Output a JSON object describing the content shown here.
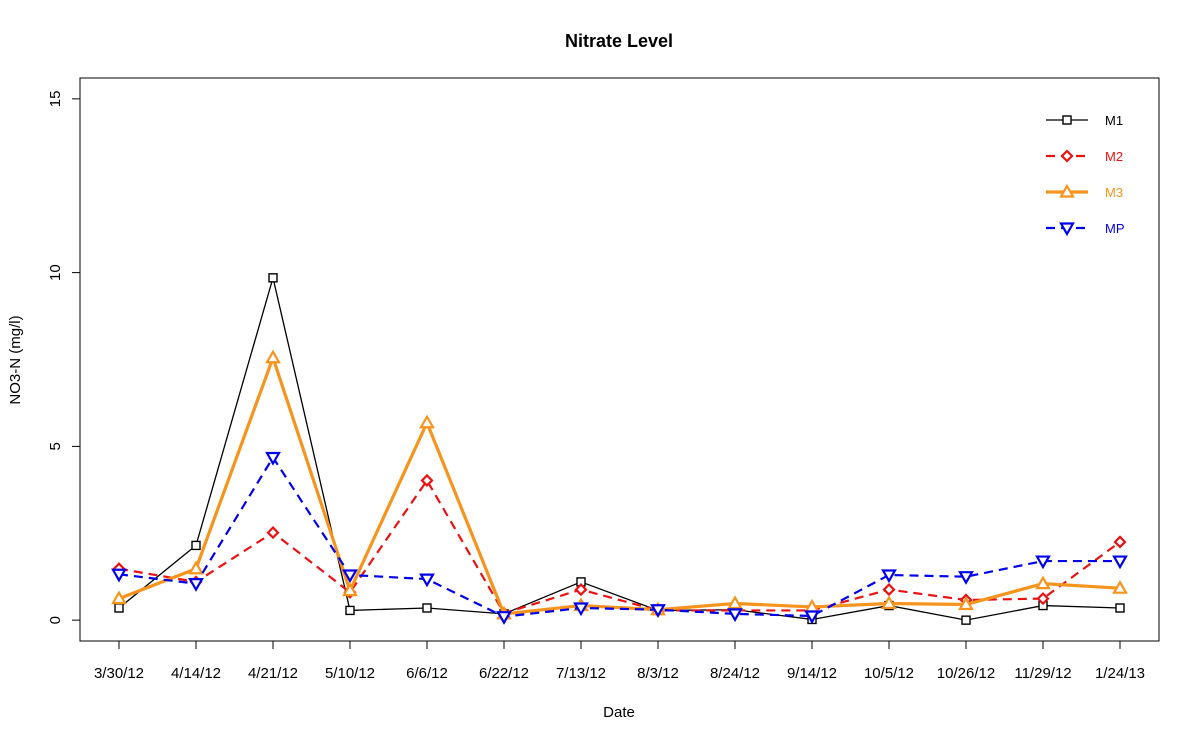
{
  "chart_data": {
    "type": "line",
    "title": "Nitrate Level",
    "xlabel": "Date",
    "ylabel": "NO3-N (mg/l)",
    "ylim": [
      -0.6,
      15.6
    ],
    "yticks": [
      "0",
      "5",
      "10",
      "15"
    ],
    "categories": [
      "3/30/12",
      "4/14/12",
      "4/21/12",
      "5/10/12",
      "6/6/12",
      "6/22/12",
      "7/13/12",
      "8/3/12",
      "8/24/12",
      "9/14/12",
      "10/5/12",
      "10/26/12",
      "11/29/12",
      "1/24/13"
    ],
    "legend_position": "top-right",
    "grid": false,
    "series": [
      {
        "name": "M1",
        "color": "#000000",
        "dash": "solid",
        "marker": "square",
        "values": [
          0.35,
          2.15,
          9.85,
          0.28,
          0.35,
          0.18,
          1.1,
          0.28,
          0.3,
          0.02,
          0.42,
          0.0,
          0.42,
          0.35
        ]
      },
      {
        "name": "M2",
        "color": "#ee1111",
        "dash": "dashed",
        "marker": "diamond",
        "values": [
          1.48,
          1.1,
          2.52,
          0.8,
          4.02,
          0.2,
          0.88,
          0.28,
          0.28,
          0.28,
          0.88,
          0.58,
          0.62,
          2.25
        ]
      },
      {
        "name": "M3",
        "color": "#f7941d",
        "dash": "solid",
        "marker": "triangle-up",
        "values": [
          0.62,
          1.48,
          7.55,
          0.85,
          5.68,
          0.18,
          0.42,
          0.3,
          0.48,
          0.38,
          0.48,
          0.45,
          1.05,
          0.92
        ]
      },
      {
        "name": "MP",
        "color": "#0000ee",
        "dash": "dashed",
        "marker": "triangle-down",
        "values": [
          1.32,
          1.05,
          4.68,
          1.3,
          1.18,
          0.1,
          0.35,
          0.3,
          0.18,
          0.12,
          1.3,
          1.25,
          1.7,
          1.7
        ]
      }
    ]
  }
}
